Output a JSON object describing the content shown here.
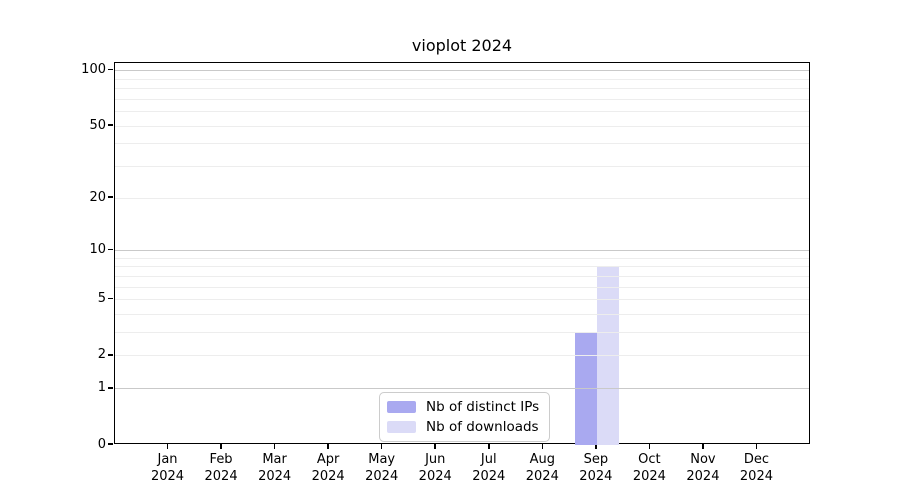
{
  "chart_data": {
    "type": "bar",
    "title": "vioplot 2024",
    "categories": [
      "Jan",
      "Feb",
      "Mar",
      "Apr",
      "May",
      "Jun",
      "Jul",
      "Aug",
      "Sep",
      "Oct",
      "Nov",
      "Dec"
    ],
    "year_label": "2024",
    "series": [
      {
        "name": "Nb of distinct IPs",
        "color": "#a9a9f0",
        "values": [
          null,
          null,
          null,
          null,
          null,
          null,
          null,
          null,
          3,
          null,
          null,
          null
        ]
      },
      {
        "name": "Nb of downloads",
        "color": "#dbdbf7",
        "values": [
          null,
          null,
          null,
          null,
          null,
          null,
          null,
          null,
          8,
          null,
          null,
          null
        ]
      }
    ],
    "yscale": "log1p",
    "yticks": [
      0,
      1,
      2,
      5,
      10,
      20,
      50,
      100
    ],
    "grid_major": [
      1,
      10,
      100
    ],
    "grid_minor": [
      2,
      3,
      4,
      5,
      6,
      7,
      8,
      9,
      20,
      30,
      40,
      50,
      60,
      70,
      80,
      90
    ],
    "ylim": [
      0,
      110
    ],
    "legend_position": "bottom-center",
    "grid": "horizontal",
    "colors": {
      "axis": "#000000",
      "grid_major": "#c9c9c9",
      "grid_minor": "#ededed",
      "legend_border": "#cccccc"
    }
  }
}
